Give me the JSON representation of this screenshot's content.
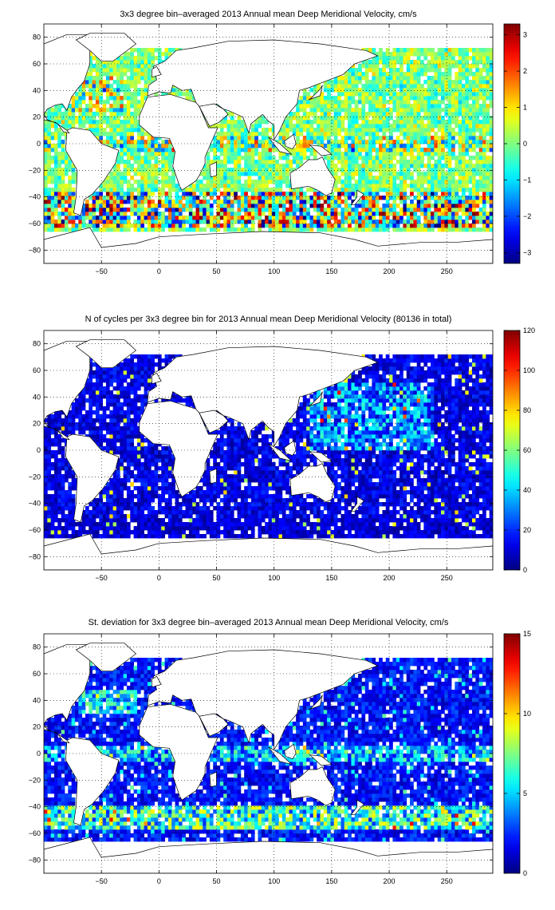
{
  "panels": [
    {
      "title": "3x3 degree bin–averaged 2013 Annual mean Deep Meridional Velocity, cm/s",
      "colorbar": {
        "min": -3.3,
        "max": 3.3,
        "ticks": [
          -3,
          -2,
          -1,
          0,
          1,
          2,
          3
        ],
        "tick_labels": [
          "−3",
          "−2",
          "−1",
          "0",
          "1",
          "2",
          "3"
        ]
      },
      "field": "velocity"
    },
    {
      "title": "N of cycles per 3x3 degree bin for 2013 Annual mean Deep Meridional Velocity (80136 in total)",
      "colorbar": {
        "min": 0,
        "max": 120,
        "ticks": [
          0,
          20,
          40,
          60,
          80,
          100,
          120
        ],
        "tick_labels": [
          "0",
          "20",
          "40",
          "60",
          "80",
          "100",
          "120"
        ]
      },
      "field": "count"
    },
    {
      "title": "St. deviation for 3x3 degree bin–averaged 2013 Annual mean Deep Meridional Velocity, cm/s",
      "colorbar": {
        "min": 0,
        "max": 15,
        "ticks": [
          0,
          5,
          10,
          15
        ],
        "tick_labels": [
          "0",
          "5",
          "10",
          "15"
        ]
      },
      "field": "stdev"
    }
  ],
  "map_axes": {
    "xlim": [
      -100,
      290
    ],
    "ylim": [
      -90,
      90
    ],
    "x_ticks": [
      -50,
      0,
      50,
      100,
      150,
      200,
      250
    ],
    "x_tick_labels": [
      "−50",
      "0",
      "50",
      "100",
      "150",
      "200",
      "250"
    ],
    "y_ticks": [
      -80,
      -60,
      -40,
      -20,
      0,
      20,
      40,
      60,
      80
    ],
    "y_tick_labels": [
      "−80",
      "−60",
      "−40",
      "−20",
      "0",
      "20",
      "40",
      "60",
      "80"
    ],
    "grid": "dotted",
    "bin_size_deg": 3
  },
  "colormap": "jet"
}
